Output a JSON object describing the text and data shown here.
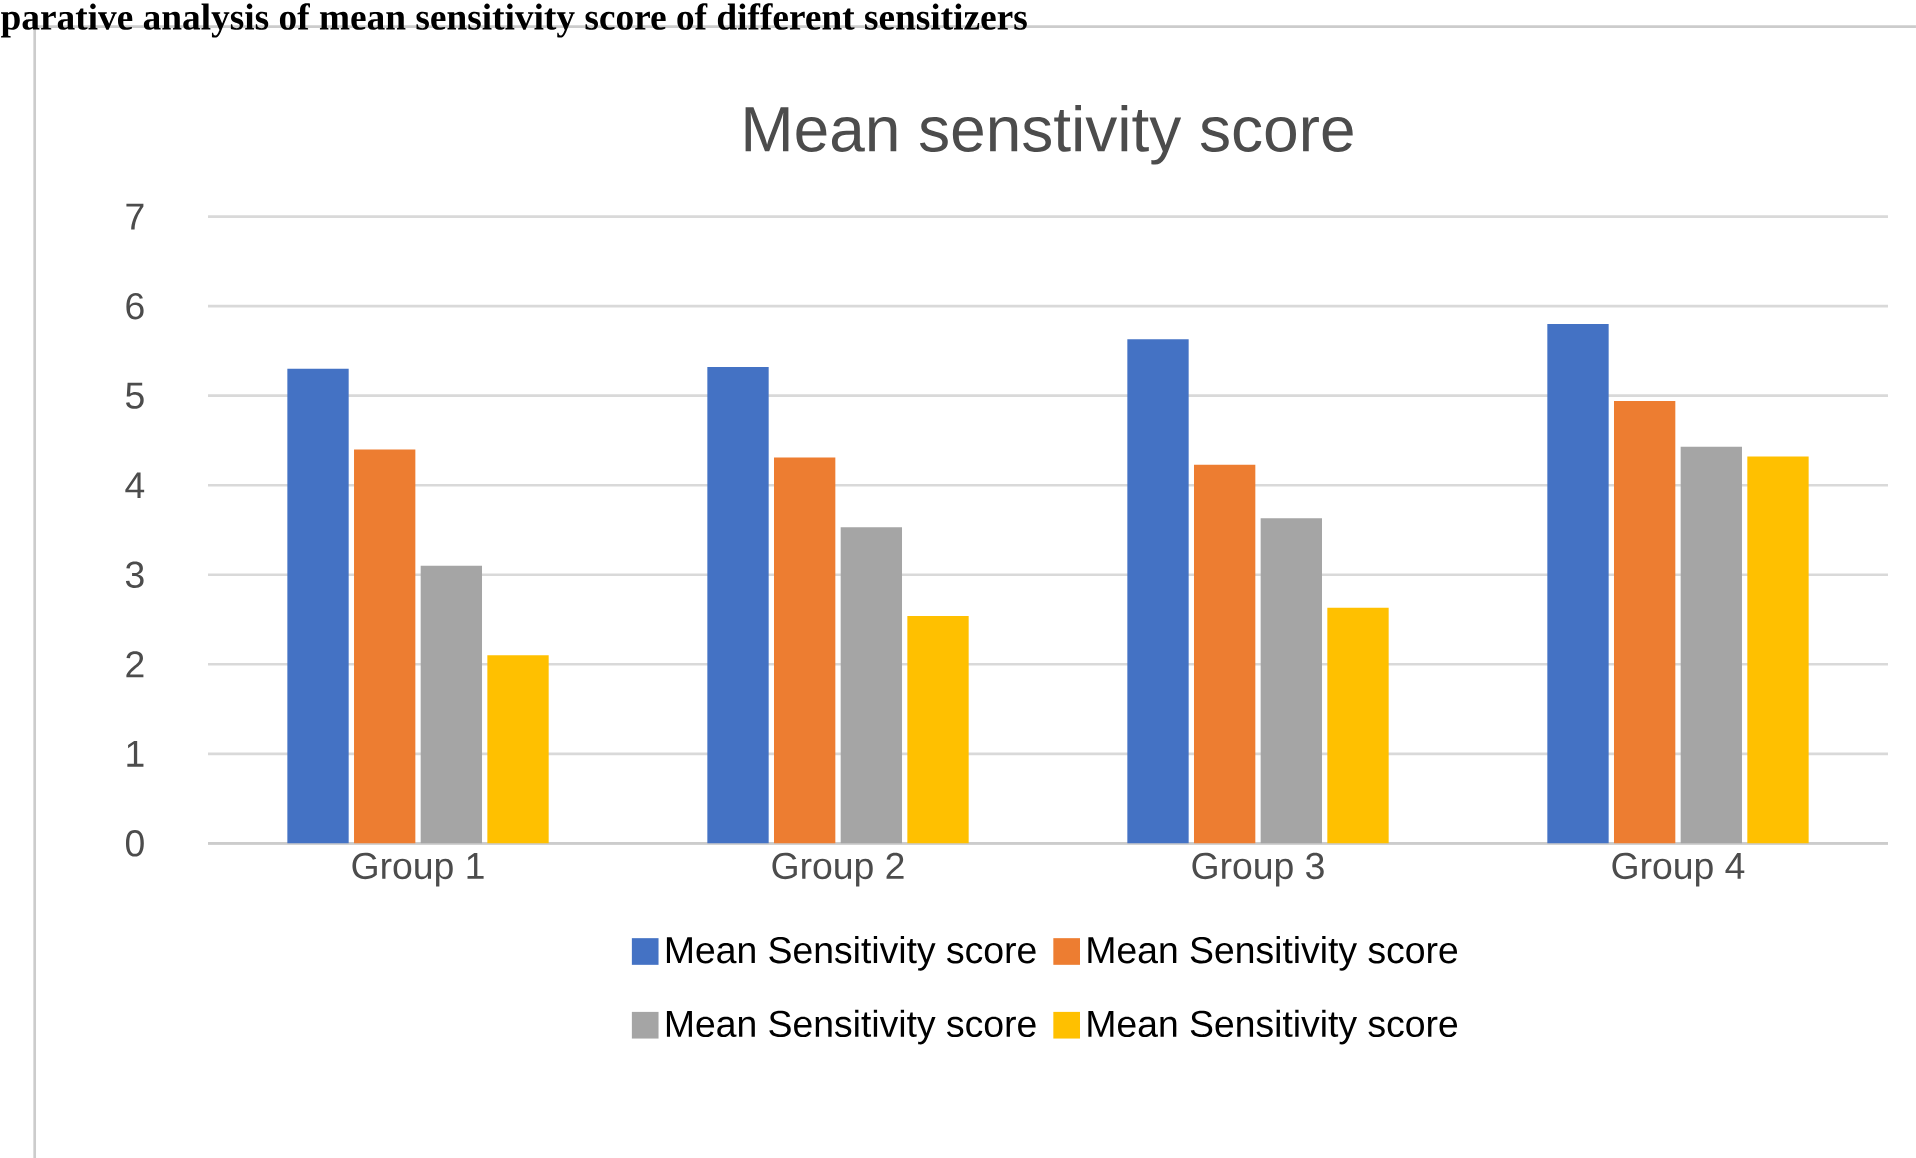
{
  "chart_data": {
    "type": "bar",
    "title": "Mean senstivity score",
    "annotations": [
      "parative analysis of mean sensitivity score of different sensitizers"
    ],
    "categories": [
      "Group 1",
      "Group 2",
      "Group 3",
      "Group 4"
    ],
    "series": [
      {
        "name": "Mean Sensitivity score",
        "color": "#4472c4",
        "values": [
          5.3,
          5.32,
          5.63,
          5.8
        ]
      },
      {
        "name": "Mean Sensitivity score",
        "color": "#ed7d31",
        "values": [
          4.4,
          4.31,
          4.23,
          4.94
        ]
      },
      {
        "name": "Mean Sensitivity score",
        "color": "#a5a5a5",
        "values": [
          3.1,
          3.53,
          3.63,
          4.43
        ]
      },
      {
        "name": "Mean Sensitivity score",
        "color": "#ffc000",
        "values": [
          2.1,
          2.54,
          2.63,
          4.32
        ]
      }
    ],
    "ylim": [
      0,
      7
    ],
    "yticks": [
      0,
      1,
      2,
      3,
      4,
      5,
      6,
      7
    ],
    "grid": "y",
    "legend": "bottom"
  }
}
